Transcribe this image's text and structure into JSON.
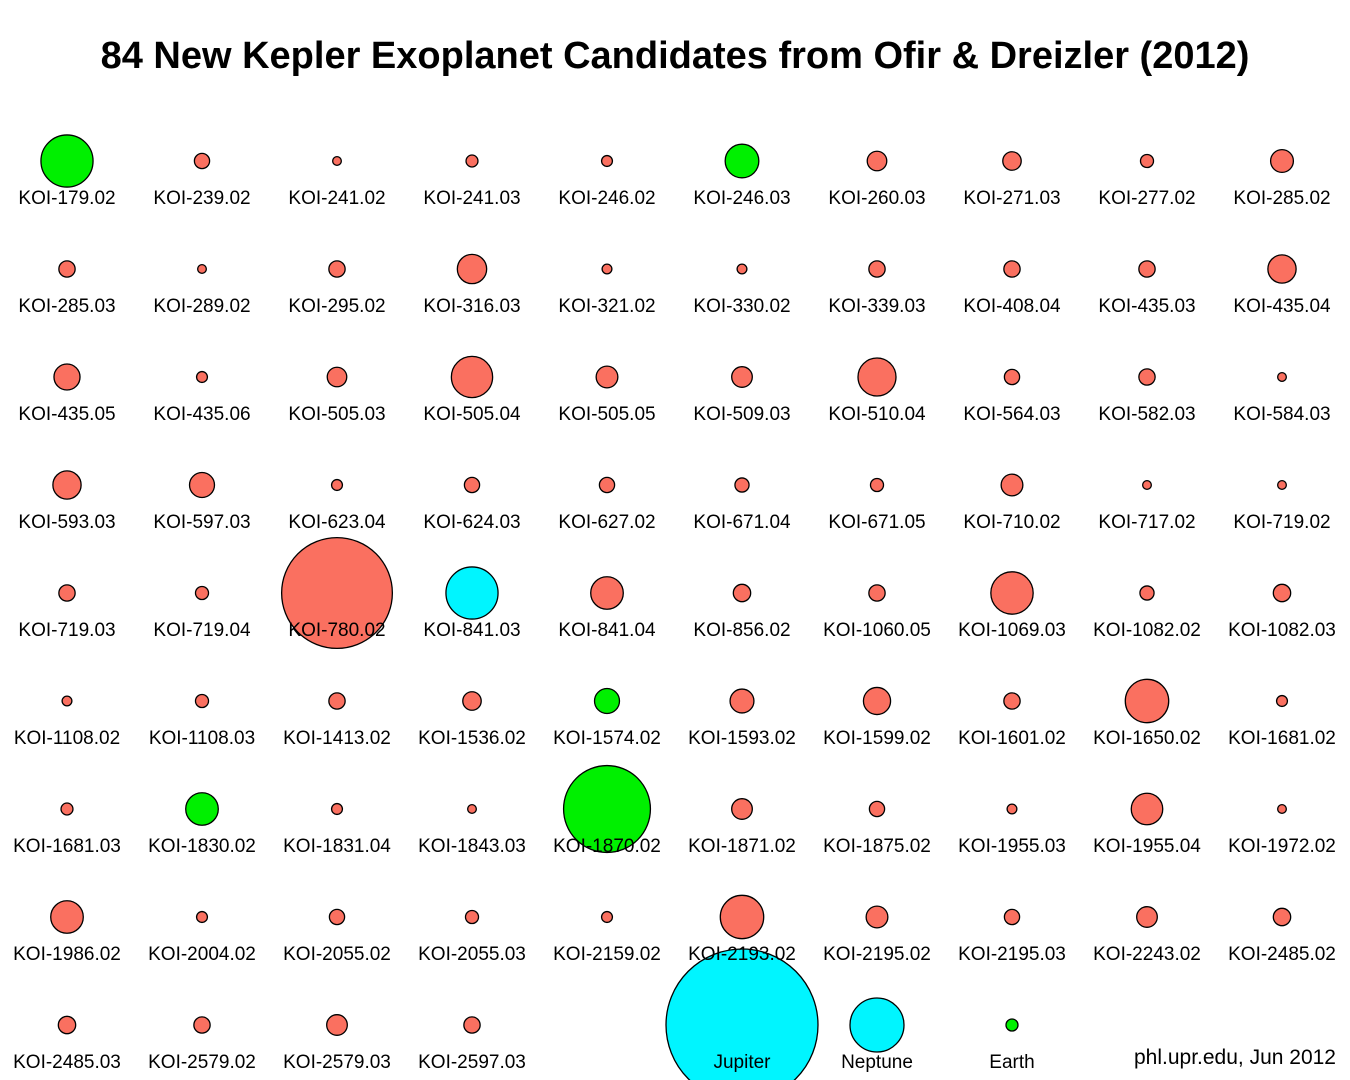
{
  "chart_data": {
    "type": "bubble",
    "title": "84 New Kepler Exoplanet Candidates from Ofir & Dreizler (2012)",
    "size_unit": "relative planet radius (area-scaled circles)",
    "categories_colors": {
      "hot": "#fa7060",
      "warm": "#00f000",
      "hot_jupiter_like": "#00f5ff",
      "reference": "#00f5ff",
      "earth": "#00f000"
    },
    "planets": [
      {
        "name": "KOI-179.02",
        "size": 4.8,
        "color": "#00f000"
      },
      {
        "name": "KOI-239.02",
        "size": 1.4,
        "color": "#fa7060"
      },
      {
        "name": "KOI-241.02",
        "size": 0.8,
        "color": "#fa7060"
      },
      {
        "name": "KOI-241.03",
        "size": 1.1,
        "color": "#fa7060"
      },
      {
        "name": "KOI-246.02",
        "size": 1.0,
        "color": "#fa7060"
      },
      {
        "name": "KOI-246.03",
        "size": 3.1,
        "color": "#00f000"
      },
      {
        "name": "KOI-260.03",
        "size": 1.8,
        "color": "#fa7060"
      },
      {
        "name": "KOI-271.03",
        "size": 1.7,
        "color": "#fa7060"
      },
      {
        "name": "KOI-277.02",
        "size": 1.2,
        "color": "#fa7060"
      },
      {
        "name": "KOI-285.02",
        "size": 2.1,
        "color": "#fa7060"
      },
      {
        "name": "KOI-285.03",
        "size": 1.5,
        "color": "#fa7060"
      },
      {
        "name": "KOI-289.02",
        "size": 0.8,
        "color": "#fa7060"
      },
      {
        "name": "KOI-295.02",
        "size": 1.5,
        "color": "#fa7060"
      },
      {
        "name": "KOI-316.03",
        "size": 2.7,
        "color": "#fa7060"
      },
      {
        "name": "KOI-321.02",
        "size": 0.9,
        "color": "#fa7060"
      },
      {
        "name": "KOI-330.02",
        "size": 0.9,
        "color": "#fa7060"
      },
      {
        "name": "KOI-339.03",
        "size": 1.5,
        "color": "#fa7060"
      },
      {
        "name": "KOI-408.04",
        "size": 1.5,
        "color": "#fa7060"
      },
      {
        "name": "KOI-435.03",
        "size": 1.5,
        "color": "#fa7060"
      },
      {
        "name": "KOI-435.04",
        "size": 2.6,
        "color": "#fa7060"
      },
      {
        "name": "KOI-435.05",
        "size": 2.4,
        "color": "#fa7060"
      },
      {
        "name": "KOI-435.06",
        "size": 1.0,
        "color": "#fa7060"
      },
      {
        "name": "KOI-505.03",
        "size": 1.8,
        "color": "#fa7060"
      },
      {
        "name": "KOI-505.04",
        "size": 3.8,
        "color": "#fa7060"
      },
      {
        "name": "KOI-505.05",
        "size": 2.0,
        "color": "#fa7060"
      },
      {
        "name": "KOI-509.03",
        "size": 1.9,
        "color": "#fa7060"
      },
      {
        "name": "KOI-510.04",
        "size": 3.5,
        "color": "#fa7060"
      },
      {
        "name": "KOI-564.03",
        "size": 1.4,
        "color": "#fa7060"
      },
      {
        "name": "KOI-582.03",
        "size": 1.5,
        "color": "#fa7060"
      },
      {
        "name": "KOI-584.03",
        "size": 0.8,
        "color": "#fa7060"
      },
      {
        "name": "KOI-593.03",
        "size": 2.6,
        "color": "#fa7060"
      },
      {
        "name": "KOI-597.03",
        "size": 2.3,
        "color": "#fa7060"
      },
      {
        "name": "KOI-623.04",
        "size": 1.0,
        "color": "#fa7060"
      },
      {
        "name": "KOI-624.03",
        "size": 1.4,
        "color": "#fa7060"
      },
      {
        "name": "KOI-627.02",
        "size": 1.4,
        "color": "#fa7060"
      },
      {
        "name": "KOI-671.04",
        "size": 1.3,
        "color": "#fa7060"
      },
      {
        "name": "KOI-671.05",
        "size": 1.2,
        "color": "#fa7060"
      },
      {
        "name": "KOI-710.02",
        "size": 2.0,
        "color": "#fa7060"
      },
      {
        "name": "KOI-717.02",
        "size": 0.8,
        "color": "#fa7060"
      },
      {
        "name": "KOI-719.02",
        "size": 0.8,
        "color": "#fa7060"
      },
      {
        "name": "KOI-719.03",
        "size": 1.5,
        "color": "#fa7060"
      },
      {
        "name": "KOI-719.04",
        "size": 1.2,
        "color": "#fa7060"
      },
      {
        "name": "KOI-780.02",
        "size": 10.2,
        "color": "#fa7060"
      },
      {
        "name": "KOI-841.03",
        "size": 4.8,
        "color": "#00f5ff"
      },
      {
        "name": "KOI-841.04",
        "size": 3.0,
        "color": "#fa7060"
      },
      {
        "name": "KOI-856.02",
        "size": 1.6,
        "color": "#fa7060"
      },
      {
        "name": "KOI-1060.05",
        "size": 1.5,
        "color": "#fa7060"
      },
      {
        "name": "KOI-1069.03",
        "size": 3.9,
        "color": "#fa7060"
      },
      {
        "name": "KOI-1082.02",
        "size": 1.3,
        "color": "#fa7060"
      },
      {
        "name": "KOI-1082.03",
        "size": 1.6,
        "color": "#fa7060"
      },
      {
        "name": "KOI-1108.02",
        "size": 0.9,
        "color": "#fa7060"
      },
      {
        "name": "KOI-1108.03",
        "size": 1.2,
        "color": "#fa7060"
      },
      {
        "name": "KOI-1413.02",
        "size": 1.5,
        "color": "#fa7060"
      },
      {
        "name": "KOI-1536.02",
        "size": 1.7,
        "color": "#fa7060"
      },
      {
        "name": "KOI-1574.02",
        "size": 2.3,
        "color": "#00f000"
      },
      {
        "name": "KOI-1593.02",
        "size": 2.2,
        "color": "#fa7060"
      },
      {
        "name": "KOI-1599.02",
        "size": 2.5,
        "color": "#fa7060"
      },
      {
        "name": "KOI-1601.02",
        "size": 1.5,
        "color": "#fa7060"
      },
      {
        "name": "KOI-1650.02",
        "size": 4.0,
        "color": "#fa7060"
      },
      {
        "name": "KOI-1681.02",
        "size": 1.0,
        "color": "#fa7060"
      },
      {
        "name": "KOI-1681.03",
        "size": 1.1,
        "color": "#fa7060"
      },
      {
        "name": "KOI-1830.02",
        "size": 3.0,
        "color": "#00f000"
      },
      {
        "name": "KOI-1831.04",
        "size": 1.0,
        "color": "#fa7060"
      },
      {
        "name": "KOI-1843.03",
        "size": 0.8,
        "color": "#fa7060"
      },
      {
        "name": "KOI-1870.02",
        "size": 8.0,
        "color": "#00f000"
      },
      {
        "name": "KOI-1871.02",
        "size": 1.9,
        "color": "#fa7060"
      },
      {
        "name": "KOI-1875.02",
        "size": 1.4,
        "color": "#fa7060"
      },
      {
        "name": "KOI-1955.03",
        "size": 0.9,
        "color": "#fa7060"
      },
      {
        "name": "KOI-1955.04",
        "size": 2.9,
        "color": "#fa7060"
      },
      {
        "name": "KOI-1972.02",
        "size": 0.8,
        "color": "#fa7060"
      },
      {
        "name": "KOI-1986.02",
        "size": 3.0,
        "color": "#fa7060"
      },
      {
        "name": "KOI-2004.02",
        "size": 1.0,
        "color": "#fa7060"
      },
      {
        "name": "KOI-2055.02",
        "size": 1.4,
        "color": "#fa7060"
      },
      {
        "name": "KOI-2055.03",
        "size": 1.2,
        "color": "#fa7060"
      },
      {
        "name": "KOI-2159.02",
        "size": 1.0,
        "color": "#fa7060"
      },
      {
        "name": "KOI-2193.02",
        "size": 4.0,
        "color": "#fa7060"
      },
      {
        "name": "KOI-2195.02",
        "size": 2.0,
        "color": "#fa7060"
      },
      {
        "name": "KOI-2195.03",
        "size": 1.4,
        "color": "#fa7060"
      },
      {
        "name": "KOI-2243.02",
        "size": 1.9,
        "color": "#fa7060"
      },
      {
        "name": "KOI-2485.02",
        "size": 1.6,
        "color": "#fa7060"
      },
      {
        "name": "KOI-2485.03",
        "size": 1.6,
        "color": "#fa7060"
      },
      {
        "name": "KOI-2579.02",
        "size": 1.5,
        "color": "#fa7060"
      },
      {
        "name": "KOI-2579.03",
        "size": 1.9,
        "color": "#fa7060"
      },
      {
        "name": "KOI-2597.03",
        "size": 1.5,
        "color": "#fa7060"
      }
    ],
    "reference_bodies": [
      {
        "name": "Jupiter",
        "size": 11.2,
        "color": "#00f5ff"
      },
      {
        "name": "Neptune",
        "size": 3.9,
        "color": "#00f5ff"
      },
      {
        "name": "Earth",
        "size": 1.0,
        "color": "#00f000"
      }
    ],
    "layout": {
      "columns": 10
    },
    "credit": "phl.upr.edu, Jun 2012"
  }
}
